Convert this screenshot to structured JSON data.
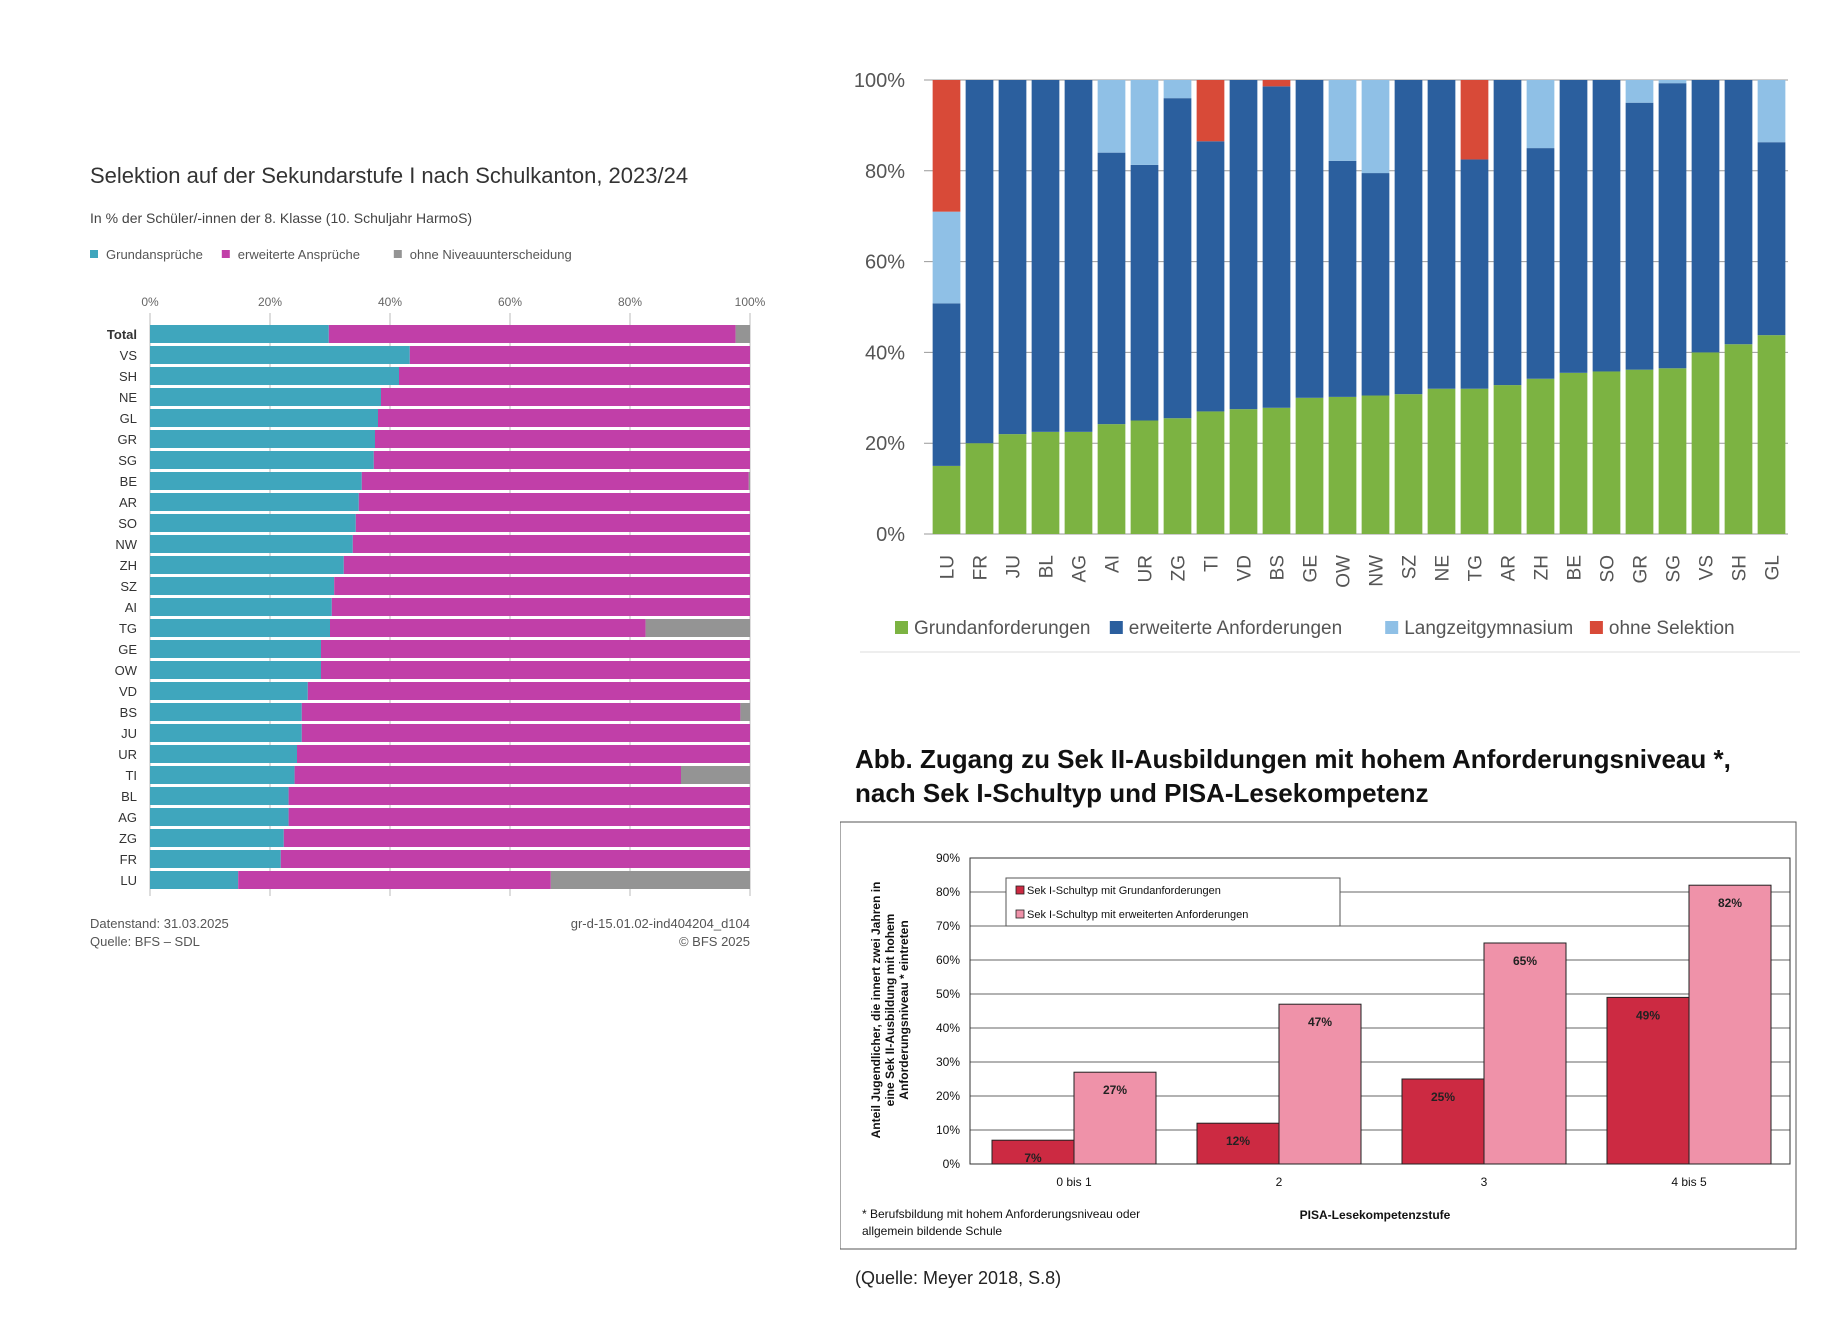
{
  "chart_data": [
    {
      "type": "bar",
      "orientation": "horizontal",
      "stacked": true,
      "title": "Selektion auf der Sekundarstufe I nach Schulkanton, 2023/24",
      "subtitle": "In % der Schüler/-innen der 8. Klasse (10. Schuljahr HarmoS)",
      "legend_position": "top-left",
      "xlim": [
        0,
        100
      ],
      "x_ticks": [
        "0%",
        "20%",
        "40%",
        "60%",
        "80%",
        "100%"
      ],
      "categories": [
        "Total",
        "VS",
        "SH",
        "NE",
        "GL",
        "GR",
        "SG",
        "BE",
        "AR",
        "SO",
        "NW",
        "ZH",
        "SZ",
        "AI",
        "TG",
        "GE",
        "OW",
        "VD",
        "BS",
        "JU",
        "UR",
        "TI",
        "BL",
        "AG",
        "ZG",
        "FR",
        "LU"
      ],
      "series": [
        {
          "name": "Grundansprüche",
          "color": "#3fa6bd",
          "values": [
            29.8,
            43.3,
            41.5,
            38.5,
            38,
            37.5,
            37.3,
            35.3,
            34.8,
            34.3,
            33.8,
            32.3,
            30.7,
            30.3,
            30,
            28.5,
            28.5,
            26.3,
            25.3,
            25.3,
            24.5,
            24.1,
            23.1,
            23.1,
            22.3,
            21.8,
            14.7
          ]
        },
        {
          "name": "erweiterte Ansprüche",
          "color": "#c13fa8",
          "values": [
            67.8,
            56.7,
            58.5,
            61.5,
            62,
            62.5,
            62.7,
            64.5,
            65.2,
            65.7,
            66.2,
            67.7,
            69.3,
            69.7,
            52.6,
            71.5,
            71.5,
            73.7,
            73.1,
            74.7,
            75.5,
            64.4,
            76.9,
            76.9,
            77.7,
            78.2,
            52.1
          ]
        },
        {
          "name": "ohne Niveauunterscheidung",
          "color": "#949494",
          "values": [
            2.4,
            0,
            0,
            0,
            0,
            0,
            0,
            0.2,
            0,
            0,
            0,
            0,
            0,
            0,
            17.4,
            0,
            0,
            0,
            1.6,
            0,
            0,
            11.5,
            0,
            0,
            0,
            0,
            33.2
          ]
        }
      ],
      "footer": {
        "datenstand": "Datenstand: 31.03.2025",
        "quelle": "Quelle: BFS – SDL",
        "code": "gr-d-15.01.02-ind404204_d104",
        "copyright": "© BFS 2025"
      }
    },
    {
      "type": "bar",
      "orientation": "vertical",
      "stacked": true,
      "ylim": [
        0,
        100
      ],
      "y_ticks": [
        "0%",
        "20%",
        "40%",
        "60%",
        "80%",
        "100%"
      ],
      "legend_position": "bottom",
      "grid": true,
      "categories": [
        "LU",
        "FR",
        "JU",
        "BL",
        "AG",
        "AI",
        "UR",
        "ZG",
        "TI",
        "VD",
        "BS",
        "GE",
        "OW",
        "NW",
        "SZ",
        "NE",
        "TG",
        "AR",
        "ZH",
        "BE",
        "SO",
        "GR",
        "SG",
        "VS",
        "SH",
        "GL"
      ],
      "series": [
        {
          "name": "Grundanforderungen",
          "color": "#7cb342",
          "values": [
            15,
            20,
            22,
            22.5,
            22.5,
            24.2,
            25,
            25.5,
            27,
            27.5,
            27.8,
            30,
            30.2,
            30.5,
            30.8,
            32,
            32,
            32.8,
            34.2,
            35.5,
            35.8,
            36.2,
            36.5,
            40,
            41.8,
            43.8
          ]
        },
        {
          "name": "erweiterte Anforderungen",
          "color": "#2b5f9e",
          "values": [
            35.8,
            80,
            78,
            77.5,
            77.5,
            59.8,
            56.3,
            70.5,
            59.5,
            72.5,
            70.8,
            70,
            52,
            49,
            69.2,
            68,
            50.5,
            67.2,
            50.8,
            64.5,
            64.2,
            58.8,
            62.8,
            60,
            58.2,
            42.5
          ]
        },
        {
          "name": "Langzeitgymnasium",
          "color": "#8fc0e6",
          "values": [
            20.2,
            0,
            0,
            0,
            0,
            16,
            18.7,
            4,
            0,
            0,
            0,
            0,
            17.8,
            20.5,
            0,
            0,
            0,
            0,
            15,
            0,
            0,
            5,
            0.7,
            0,
            0,
            13.7
          ]
        },
        {
          "name": "ohne Selektion",
          "color": "#d84a38",
          "values": [
            29,
            0,
            0,
            0,
            0,
            0,
            0,
            0,
            13.5,
            0,
            1.4,
            0,
            0,
            0,
            0,
            0,
            17.5,
            0,
            0,
            0,
            0,
            0,
            0,
            0,
            0,
            0
          ]
        }
      ]
    },
    {
      "type": "bar",
      "orientation": "vertical",
      "stacked": false,
      "title_lines": [
        "Abb. Zugang zu Sek II-Ausbildungen mit hohem Anforderungsniveau *,",
        "nach Sek I-Schultyp und PISA-Lesekompetenz"
      ],
      "ylabel_lines": [
        "Anteil Jugendlicher, die innert zwei Jahren in",
        "eine Sek II-Ausbildung mit hohem",
        "Anforderungsniveau * eintreten"
      ],
      "xlabel": "PISA-Lesekompetenzstufe",
      "ylim": [
        0,
        90
      ],
      "y_ticks": [
        "0%",
        "10%",
        "20%",
        "30%",
        "40%",
        "50%",
        "60%",
        "70%",
        "80%",
        "90%"
      ],
      "legend_position": "top-left",
      "categories": [
        "0 bis 1",
        "2",
        "3",
        "4 bis 5"
      ],
      "series": [
        {
          "name": "Sek I-Schultyp mit Grundanforderungen",
          "color": "#cc2a42",
          "values": [
            7,
            12,
            25,
            49
          ],
          "labels": [
            "7%",
            "12%",
            "25%",
            "49%"
          ]
        },
        {
          "name": "Sek I-Schultyp mit erweiterten Anforderungen",
          "color": "#ef92a9",
          "values": [
            27,
            47,
            65,
            82
          ],
          "labels": [
            "27%",
            "47%",
            "65%",
            "82%"
          ]
        }
      ],
      "footnote_lines": [
        "* Berufsbildung mit hohem Anforderungsniveau oder",
        "allgemein bildende Schule"
      ],
      "source": "(Quelle: Meyer 2018, S.8)"
    }
  ]
}
